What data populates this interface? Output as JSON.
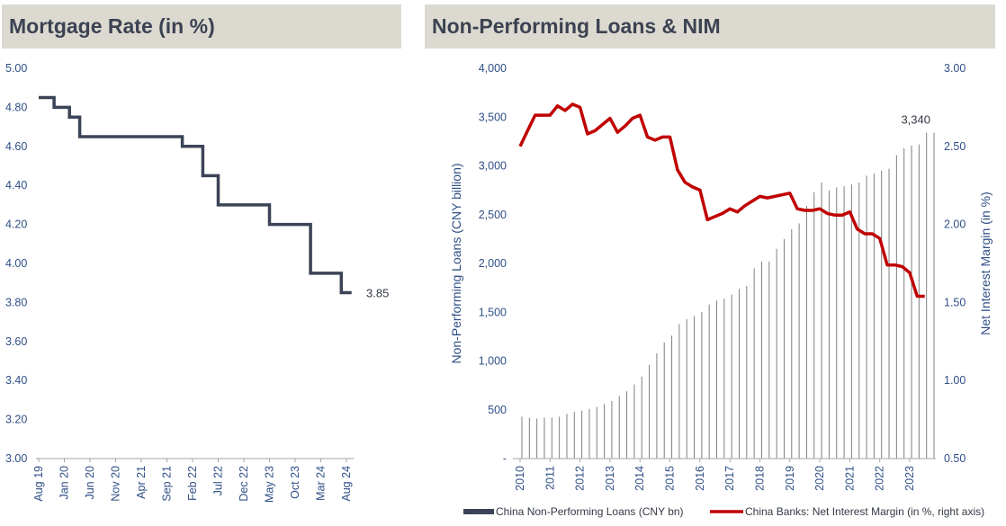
{
  "chart_data": [
    {
      "type": "line",
      "title": "Mortgage Rate (in %)",
      "line_style": "step",
      "ylim": [
        3.0,
        5.0
      ],
      "yticks": [
        "5.00",
        "4.80",
        "4.60",
        "4.40",
        "4.20",
        "4.00",
        "3.80",
        "3.60",
        "3.40",
        "3.20",
        "3.00"
      ],
      "xlim": [
        0,
        60
      ],
      "xtick_labels": [
        "Aug 19",
        "Jan 20",
        "Jun 20",
        "Nov 20",
        "Apr 21",
        "Sep 21",
        "Feb 22",
        "Jul 22",
        "Dec 22",
        "May 23",
        "Oct 23",
        "Mar 24",
        "Aug 24"
      ],
      "xtick_positions": [
        0,
        5,
        10,
        15,
        20,
        25,
        30,
        35,
        40,
        45,
        50,
        55,
        60
      ],
      "series": [
        {
          "color": "#3b4457",
          "x": [
            0,
            3,
            6,
            8,
            28,
            32,
            35,
            45,
            53,
            59,
            61
          ],
          "y": [
            4.85,
            4.8,
            4.75,
            4.65,
            4.6,
            4.45,
            4.3,
            4.2,
            3.95,
            3.85,
            3.85
          ]
        }
      ],
      "annotations": [
        {
          "text": "3.85"
        }
      ]
    },
    {
      "type": "bar+line",
      "title": "Non-Performing Loans & NIM",
      "ylabel": "Non-Performing Loans (CNY billion)",
      "y2label": "Net Interest Margin (in %)",
      "ylim": [
        0,
        4000
      ],
      "yticks": [
        "4,000",
        "3,500",
        "3,000",
        "2,500",
        "2,000",
        "1,500",
        "1,000",
        "500",
        "-"
      ],
      "y2lim": [
        0.5,
        3.0
      ],
      "y2ticks": [
        "3.00",
        "2.50",
        "2.00",
        "1.50",
        "1.00",
        "0.50"
      ],
      "xlim": [
        2010,
        2023.75
      ],
      "years": [
        "2010",
        "2011",
        "2012",
        "2013",
        "2014",
        "2015",
        "2016",
        "2017",
        "2018",
        "2019",
        "2020",
        "2021",
        "2022",
        "2023"
      ],
      "bar_series": {
        "name": "China Non-Performing Loans (CNY bn)",
        "color": "#7f7f7f",
        "start_year": 2010,
        "step": 0.25,
        "values": [
          430,
          420,
          410,
          420,
          420,
          430,
          460,
          480,
          490,
          510,
          530,
          560,
          590,
          640,
          690,
          760,
          840,
          960,
          1080,
          1190,
          1260,
          1380,
          1430,
          1460,
          1500,
          1580,
          1620,
          1640,
          1680,
          1740,
          1770,
          1950,
          2020,
          2020,
          2150,
          2250,
          2350,
          2410,
          2590,
          2730,
          2830,
          2750,
          2780,
          2790,
          2810,
          2830,
          2900,
          2920,
          2950,
          2970,
          3110,
          3180,
          3210,
          3220,
          3340,
          3340
        ]
      },
      "line_series": {
        "name": "China Banks: Net Interest Margin (in %, right axis)",
        "color": "#c00000",
        "x": [
          2010.0,
          2010.25,
          2010.5,
          2010.75,
          2011.0,
          2011.25,
          2011.5,
          2011.75,
          2012.0,
          2012.25,
          2012.5,
          2012.75,
          2013.0,
          2013.25,
          2013.5,
          2013.75,
          2014.0,
          2014.25,
          2014.5,
          2014.75,
          2015.0,
          2015.25,
          2015.5,
          2015.75,
          2016.0,
          2016.25,
          2016.5,
          2016.75,
          2017.0,
          2017.25,
          2017.5,
          2017.75,
          2018.0,
          2018.25,
          2018.5,
          2018.75,
          2019.0,
          2019.25,
          2019.5,
          2019.75,
          2020.0,
          2020.25,
          2020.5,
          2020.75,
          2021.0,
          2021.25,
          2021.5,
          2021.75,
          2022.0,
          2022.25,
          2022.5,
          2022.75,
          2023.0,
          2023.25,
          2023.5
        ],
        "values": [
          2.5,
          2.6,
          2.7,
          2.7,
          2.7,
          2.76,
          2.73,
          2.77,
          2.75,
          2.58,
          2.6,
          2.64,
          2.68,
          2.59,
          2.63,
          2.68,
          2.7,
          2.56,
          2.54,
          2.56,
          2.56,
          2.35,
          2.27,
          2.24,
          2.22,
          2.03,
          2.05,
          2.07,
          2.1,
          2.08,
          2.12,
          2.15,
          2.18,
          2.17,
          2.18,
          2.19,
          2.2,
          2.1,
          2.09,
          2.09,
          2.1,
          2.07,
          2.06,
          2.06,
          2.08,
          1.97,
          1.94,
          1.94,
          1.91,
          1.74,
          1.74,
          1.73,
          1.69,
          1.54,
          1.54
        ]
      },
      "annotations": [
        {
          "text": "3,340"
        }
      ],
      "legend_position": "bottom"
    }
  ]
}
